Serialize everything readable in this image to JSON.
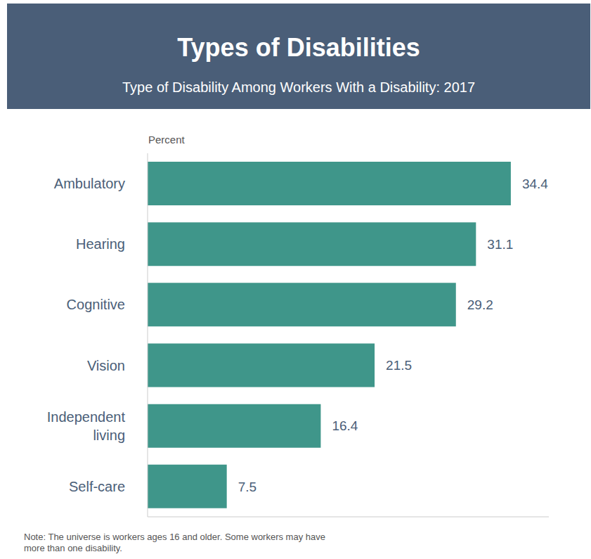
{
  "chart_data": {
    "type": "bar",
    "title": "Types of Disabilities",
    "subtitle": "Type of Disability Among Workers With a Disability: 2017",
    "x_label": "Percent",
    "categories": [
      "Ambulatory",
      "Hearing",
      "Cognitive",
      "Vision",
      "Independent living",
      "Self-care"
    ],
    "values": [
      34.4,
      31.1,
      29.2,
      21.5,
      16.4,
      7.5
    ],
    "color": "#3f968a",
    "orientation": "horizontal",
    "data_labels": true,
    "tick_labels": "y",
    "xlim": [
      0,
      38
    ],
    "grid": false,
    "note": "Note: The universe is workers ages 16 and older. Some workers may have more than one disability."
  }
}
